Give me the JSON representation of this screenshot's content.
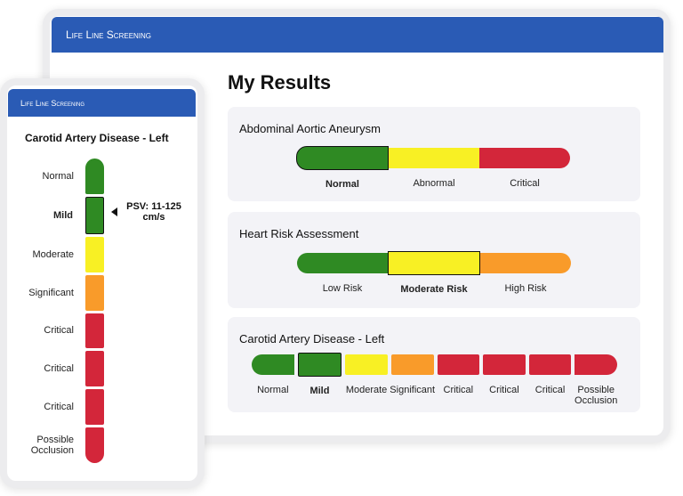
{
  "desktop": {
    "logo": "Life Line Screening",
    "title": "My Results",
    "cards": [
      {
        "title": "Abdominal Aortic Aneurysm",
        "segments": [
          {
            "label": "Normal",
            "color": "#2f8a23",
            "selected": true
          },
          {
            "label": "Abnormal",
            "color": "#f8f024",
            "selected": false
          },
          {
            "label": "Critical",
            "color": "#d3263a",
            "selected": false
          }
        ]
      },
      {
        "title": "Heart Risk Assessment",
        "segments": [
          {
            "label": "Low Risk",
            "color": "#2f8a23",
            "selected": false
          },
          {
            "label": "Moderate Risk",
            "color": "#f8f024",
            "selected": true
          },
          {
            "label": "High Risk",
            "color": "#f99b2a",
            "selected": false
          }
        ]
      },
      {
        "title": "Carotid Artery Disease - Left",
        "segments": [
          {
            "label": "Normal",
            "color": "#2f8a23",
            "selected": false
          },
          {
            "label": "Mild",
            "color": "#2f8a23",
            "selected": true
          },
          {
            "label": "Moderate",
            "color": "#f8f024",
            "selected": false
          },
          {
            "label": "Significant",
            "color": "#f99b2a",
            "selected": false
          },
          {
            "label": "Critical",
            "color": "#d3263a",
            "selected": false
          },
          {
            "label": "Critical",
            "color": "#d3263a",
            "selected": false
          },
          {
            "label": "Critical",
            "color": "#d3263a",
            "selected": false
          },
          {
            "label": "Possible Occlusion",
            "color": "#d3263a",
            "selected": false
          }
        ]
      }
    ]
  },
  "mobile": {
    "logo": "Life Line Screening",
    "title": "Carotid Artery Disease - Left",
    "pointer": "PSV: 11-125 cm/s",
    "segments": [
      {
        "label": "Normal",
        "color": "#2f8a23",
        "selected": false
      },
      {
        "label": "Mild",
        "color": "#2f8a23",
        "selected": true
      },
      {
        "label": "Moderate",
        "color": "#f8f024",
        "selected": false
      },
      {
        "label": "Significant",
        "color": "#f99b2a",
        "selected": false
      },
      {
        "label": "Critical",
        "color": "#d3263a",
        "selected": false
      },
      {
        "label": "Critical",
        "color": "#d3263a",
        "selected": false
      },
      {
        "label": "Critical",
        "color": "#d3263a",
        "selected": false
      },
      {
        "label": "Possible Occlusion",
        "color": "#d3263a",
        "selected": false
      }
    ]
  }
}
